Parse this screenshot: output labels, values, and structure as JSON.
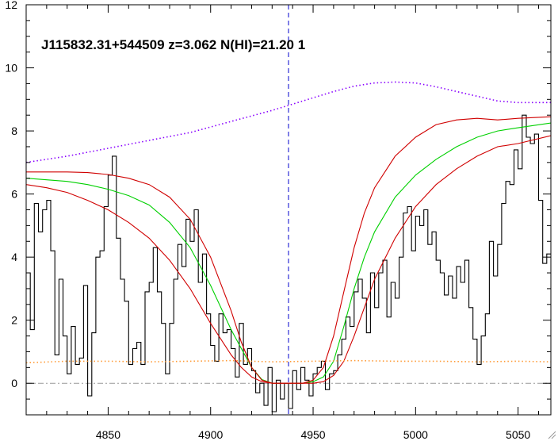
{
  "chart_data": {
    "type": "line",
    "title": "J115832.31+544509 z=3.062 N(HI)=21.20 1",
    "xlabel": "",
    "ylabel": "",
    "xlim": [
      4810,
      5066
    ],
    "ylim": [
      -1,
      12
    ],
    "x_ticks": [
      4850,
      4900,
      4950,
      5000,
      5050
    ],
    "y_ticks": [
      0,
      2,
      4,
      6,
      8,
      10,
      12
    ],
    "grid": false,
    "legend": "none",
    "absorber_center_wavelength": 4938,
    "colors": {
      "flux": "#000000",
      "dla_fit": "#00d000",
      "dla_bounds": "#d00000",
      "continuum": "#8800ff",
      "error": "#ff9933",
      "center_line": "#0000cc",
      "zero_line": "#999999"
    },
    "series": [
      {
        "role": "flux",
        "style": "histogram",
        "x": [
          4810,
          4812,
          4814,
          4816,
          4818,
          4820,
          4822,
          4824,
          4826,
          4828,
          4830,
          4832,
          4834,
          4836,
          4838,
          4840,
          4842,
          4844,
          4846,
          4848,
          4850,
          4852,
          4854,
          4856,
          4858,
          4860,
          4862,
          4864,
          4866,
          4868,
          4870,
          4872,
          4874,
          4876,
          4878,
          4880,
          4882,
          4884,
          4886,
          4888,
          4890,
          4892,
          4894,
          4896,
          4898,
          4900,
          4902,
          4904,
          4906,
          4908,
          4910,
          4912,
          4914,
          4916,
          4918,
          4920,
          4922,
          4924,
          4926,
          4928,
          4930,
          4932,
          4934,
          4936,
          4938,
          4940,
          4942,
          4944,
          4946,
          4948,
          4950,
          4952,
          4954,
          4956,
          4958,
          4960,
          4962,
          4964,
          4966,
          4968,
          4970,
          4972,
          4974,
          4976,
          4978,
          4980,
          4982,
          4984,
          4986,
          4988,
          4990,
          4992,
          4994,
          4996,
          4998,
          5000,
          5002,
          5004,
          5006,
          5008,
          5010,
          5012,
          5014,
          5016,
          5018,
          5020,
          5022,
          5024,
          5026,
          5028,
          5030,
          5032,
          5034,
          5036,
          5038,
          5040,
          5042,
          5044,
          5046,
          5048,
          5050,
          5052,
          5054,
          5056,
          5058,
          5060,
          5062,
          5064
        ],
        "y": [
          3.5,
          1.7,
          5.7,
          4.8,
          5.5,
          5.8,
          4.2,
          0.9,
          3.3,
          1.5,
          0.3,
          1.8,
          0.6,
          0.8,
          3.1,
          -0.4,
          1.6,
          4.0,
          4.2,
          5.6,
          6.6,
          7.2,
          4.6,
          3.3,
          2.6,
          0.6,
          1.1,
          1.3,
          0.6,
          2.9,
          3.2,
          4.3,
          2.9,
          1.9,
          0.3,
          1.9,
          3.3,
          4.4,
          3.7,
          5.2,
          4.5,
          5.5,
          3.2,
          4.1,
          2.2,
          1.2,
          0.7,
          2.2,
          1.6,
          1.7,
          1.1,
          0.2,
          1.9,
          0.6,
          1.1,
          0.4,
          -0.3,
          0.0,
          -0.7,
          0.5,
          -0.9,
          0.1,
          -0.5,
          0.0,
          -0.8,
          0.4,
          -0.2,
          0.5,
          0.1,
          -0.4,
          0.3,
          0.5,
          0.7,
          -0.2,
          0.3,
          0.4,
          0.9,
          1.4,
          2.1,
          1.8,
          2.9,
          3.3,
          2.7,
          1.6,
          3.5,
          2.4,
          3.5,
          3.9,
          2.1,
          3.2,
          2.7,
          4.0,
          5.4,
          5.6,
          4.2,
          5.3,
          5.0,
          5.5,
          4.4,
          4.8,
          3.9,
          3.5,
          2.8,
          3.4,
          2.7,
          3.7,
          3.2,
          3.9,
          2.4,
          1.4,
          0.6,
          1.5,
          2.2,
          4.5,
          3.4,
          4.4,
          5.7,
          6.4,
          6.3,
          7.4,
          6.8,
          8.5,
          7.8,
          7.6,
          7.9,
          5.8,
          3.8,
          4.1
        ]
      },
      {
        "role": "dla_fit",
        "x": [
          4810,
          4820,
          4830,
          4840,
          4850,
          4860,
          4870,
          4880,
          4890,
          4900,
          4910,
          4915,
          4920,
          4925,
          4930,
          4938,
          4945,
          4950,
          4955,
          4960,
          4965,
          4970,
          4975,
          4980,
          4990,
          5000,
          5010,
          5020,
          5030,
          5040,
          5050,
          5066
        ],
        "y": [
          6.5,
          6.45,
          6.4,
          6.3,
          6.15,
          5.95,
          5.65,
          5.1,
          4.3,
          3.1,
          1.7,
          1.1,
          0.5,
          0.12,
          0.0,
          0.0,
          0.0,
          0.05,
          0.2,
          0.7,
          1.8,
          3.0,
          4.0,
          4.8,
          5.9,
          6.6,
          7.1,
          7.5,
          7.8,
          8.0,
          8.1,
          8.25
        ]
      },
      {
        "role": "dla_upper",
        "x": [
          4810,
          4820,
          4830,
          4840,
          4850,
          4860,
          4870,
          4880,
          4890,
          4900,
          4910,
          4915,
          4920,
          4925,
          4930,
          4938,
          4945,
          4950,
          4955,
          4960,
          4965,
          4970,
          4975,
          4980,
          4990,
          5000,
          5010,
          5020,
          5030,
          5040,
          5050,
          5066
        ],
        "y": [
          6.7,
          6.7,
          6.7,
          6.68,
          6.62,
          6.5,
          6.3,
          5.9,
          5.2,
          4.0,
          2.3,
          1.3,
          0.5,
          0.1,
          0.0,
          0.0,
          0.0,
          0.1,
          0.5,
          1.5,
          2.9,
          4.3,
          5.4,
          6.2,
          7.2,
          7.8,
          8.2,
          8.35,
          8.4,
          8.35,
          8.4,
          8.45
        ]
      },
      {
        "role": "dla_lower",
        "x": [
          4810,
          4820,
          4830,
          4840,
          4850,
          4860,
          4870,
          4880,
          4890,
          4900,
          4910,
          4915,
          4920,
          4925,
          4930,
          4938,
          4945,
          4950,
          4955,
          4960,
          4965,
          4970,
          4975,
          4980,
          4990,
          5000,
          5010,
          5020,
          5030,
          5040,
          5050,
          5066
        ],
        "y": [
          6.3,
          6.2,
          6.05,
          5.8,
          5.5,
          5.1,
          4.6,
          3.9,
          3.0,
          1.9,
          0.9,
          0.5,
          0.2,
          0.05,
          0.0,
          0.0,
          0.0,
          0.0,
          0.05,
          0.25,
          0.7,
          1.5,
          2.4,
          3.3,
          4.6,
          5.6,
          6.3,
          6.8,
          7.2,
          7.5,
          7.6,
          7.85
        ]
      },
      {
        "role": "continuum",
        "style": "dotted",
        "x": [
          4810,
          4830,
          4850,
          4870,
          4890,
          4910,
          4930,
          4940,
          4950,
          4960,
          4970,
          4980,
          4990,
          5000,
          5010,
          5020,
          5030,
          5040,
          5050,
          5060,
          5066
        ],
        "y": [
          7.0,
          7.2,
          7.45,
          7.7,
          7.95,
          8.3,
          8.65,
          8.85,
          9.05,
          9.25,
          9.42,
          9.52,
          9.55,
          9.52,
          9.4,
          9.25,
          9.1,
          8.95,
          8.9,
          8.9,
          8.9
        ]
      },
      {
        "role": "error",
        "style": "dotted",
        "x": [
          4810,
          4830,
          4850,
          4870,
          4890,
          4910,
          4930,
          4950,
          4970,
          4990,
          5010,
          5030,
          5050,
          5066
        ],
        "y": [
          0.65,
          0.7,
          0.7,
          0.68,
          0.7,
          0.72,
          0.68,
          0.7,
          0.72,
          0.7,
          0.7,
          0.68,
          0.7,
          0.68
        ]
      }
    ]
  }
}
